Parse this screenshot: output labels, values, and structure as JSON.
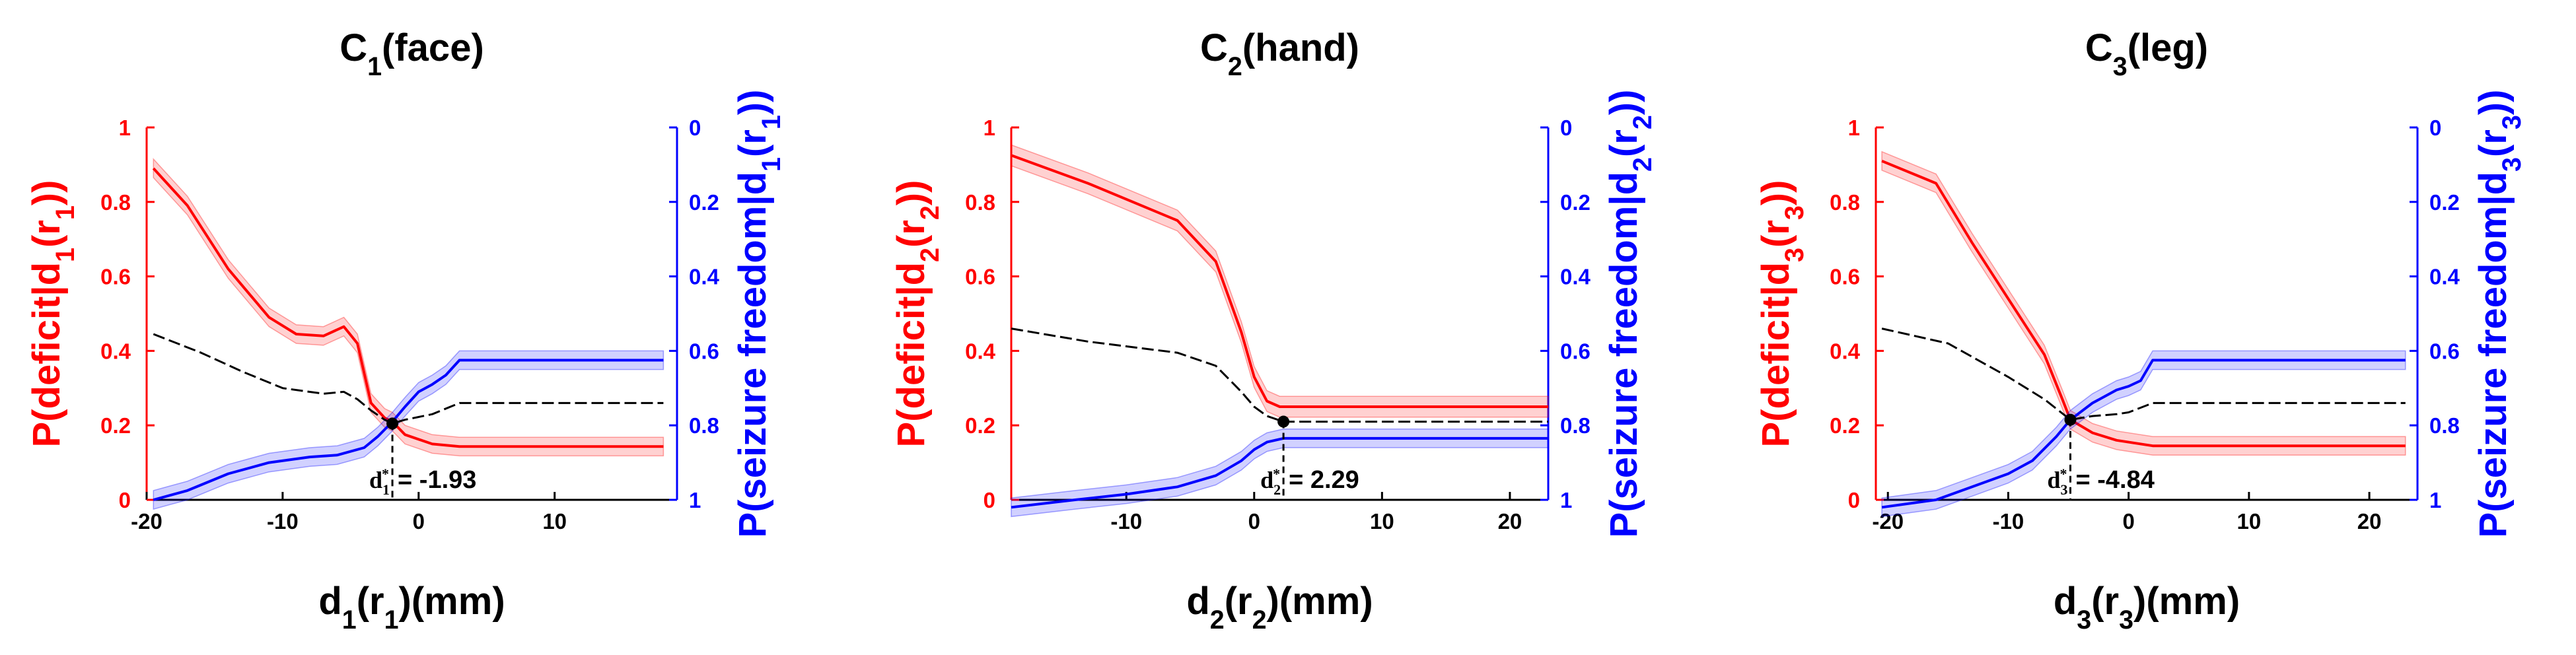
{
  "chart_data": [
    {
      "type": "line",
      "title": "C1(face)",
      "title_parts": [
        "C",
        "1",
        "(face)"
      ],
      "xlabel_parts": [
        "d",
        "1",
        "(r",
        "1",
        ")(mm)"
      ],
      "ylabel_left_parts": [
        "P(deficit|d",
        "1",
        "(r",
        "1",
        "))"
      ],
      "ylabel_right_parts": [
        "P(seizure freedom|d",
        "1",
        "(r",
        "1",
        "))"
      ],
      "xlim": [
        -20,
        19
      ],
      "xticks": [
        -20,
        -10,
        0,
        10
      ],
      "xtick_labels": [
        "-20",
        "-10",
        "0",
        "10"
      ],
      "ylim_left": [
        0,
        1
      ],
      "yticks_left": [
        0,
        0.2,
        0.4,
        0.6,
        0.8,
        1
      ],
      "ytick_labels_left": [
        "0",
        "0.2",
        "0.4",
        "0.6",
        "0.8",
        "1"
      ],
      "ylim_right": [
        1,
        0
      ],
      "yticks_right": [
        0,
        0.2,
        0.4,
        0.6,
        0.8,
        1
      ],
      "ytick_labels_right": [
        "0",
        "0.2",
        "0.4",
        "0.6",
        "0.8",
        "1"
      ],
      "series": [
        {
          "role": "deficit",
          "axis": "left",
          "color": "#ff0000",
          "x": [
            -19.5,
            -17,
            -14,
            -11,
            -9,
            -7,
            -5.5,
            -4.5,
            -3.5,
            -2.5,
            -1.93,
            -1,
            1,
            3,
            18
          ],
          "y": [
            0.89,
            0.79,
            0.62,
            0.49,
            0.445,
            0.44,
            0.465,
            0.42,
            0.26,
            0.22,
            0.21,
            0.175,
            0.15,
            0.143,
            0.143
          ],
          "band": 0.025
        },
        {
          "role": "seizure-freedom",
          "axis": "right",
          "color": "#0000ff",
          "x": [
            -19.5,
            -17,
            -14,
            -11,
            -8,
            -6,
            -4,
            -3,
            -1.93,
            -1,
            0,
            1,
            2,
            3,
            18
          ],
          "y": [
            1.0,
            0.975,
            0.93,
            0.9,
            0.885,
            0.88,
            0.86,
            0.83,
            0.79,
            0.75,
            0.71,
            0.69,
            0.665,
            0.625,
            0.625
          ],
          "band": 0.025
        },
        {
          "role": "combined",
          "axis": "left",
          "color": "#000000",
          "dashed": true,
          "x": [
            -19.5,
            -16,
            -13,
            -10,
            -7,
            -5.5,
            -4.5,
            -3.5,
            -2.5,
            -1.93,
            -1,
            1,
            3,
            18
          ],
          "y": [
            0.445,
            0.395,
            0.345,
            0.3,
            0.285,
            0.29,
            0.27,
            0.24,
            0.215,
            0.205,
            0.215,
            0.23,
            0.26,
            0.26
          ]
        }
      ],
      "optimum": {
        "x": -1.93,
        "y": 0.205,
        "label_parts": [
          "d",
          "1",
          "*"
        ],
        "value_text": "= -1.93"
      }
    },
    {
      "type": "line",
      "title": "C2(hand)",
      "title_parts": [
        "C",
        "2",
        "(hand)"
      ],
      "xlabel_parts": [
        "d",
        "2",
        "(r",
        "2",
        ")(mm)"
      ],
      "ylabel_left_parts": [
        "P(deficit|d",
        "2",
        "(r",
        "2",
        "))"
      ],
      "ylabel_right_parts": [
        "P(seizure freedom|d",
        "2",
        "(r",
        "2",
        "))"
      ],
      "xlim": [
        -19,
        23
      ],
      "xticks": [
        -10,
        0,
        10,
        20
      ],
      "xtick_labels": [
        "-10",
        "0",
        "10",
        "20"
      ],
      "ylim_left": [
        0,
        1
      ],
      "yticks_left": [
        0,
        0.2,
        0.4,
        0.6,
        0.8,
        1
      ],
      "ytick_labels_left": [
        "0",
        "0.2",
        "0.4",
        "0.6",
        "0.8",
        "1"
      ],
      "ylim_right": [
        1,
        0
      ],
      "yticks_right": [
        0,
        0.2,
        0.4,
        0.6,
        0.8,
        1
      ],
      "ytick_labels_right": [
        "0",
        "0.2",
        "0.4",
        "0.6",
        "0.8",
        "1"
      ],
      "series": [
        {
          "role": "deficit",
          "axis": "left",
          "color": "#ff0000",
          "x": [
            -19,
            -13,
            -6,
            -3,
            -1,
            0,
            1,
            2,
            3,
            23
          ],
          "y": [
            0.925,
            0.85,
            0.75,
            0.64,
            0.45,
            0.33,
            0.265,
            0.25,
            0.25,
            0.25
          ],
          "band": 0.028
        },
        {
          "role": "seizure-freedom",
          "axis": "right",
          "color": "#0000ff",
          "x": [
            -19,
            -14,
            -10,
            -6,
            -3,
            -1,
            0,
            1,
            2.29,
            3,
            23
          ],
          "y": [
            1.02,
            1.0,
            0.985,
            0.965,
            0.935,
            0.895,
            0.865,
            0.845,
            0.835,
            0.835,
            0.835
          ],
          "band": 0.025
        },
        {
          "role": "combined",
          "axis": "left",
          "color": "#000000",
          "dashed": true,
          "x": [
            -19,
            -13,
            -6,
            -3,
            -1,
            0,
            1,
            2.29,
            4,
            23
          ],
          "y": [
            0.46,
            0.425,
            0.395,
            0.36,
            0.29,
            0.25,
            0.225,
            0.21,
            0.21,
            0.21
          ]
        }
      ],
      "optimum": {
        "x": 2.29,
        "y": 0.21,
        "label_parts": [
          "d",
          "2",
          "*"
        ],
        "value_text": "= 2.29"
      }
    },
    {
      "type": "line",
      "title": "C3(leg)",
      "title_parts": [
        "C",
        "3",
        "(leg)"
      ],
      "xlabel_parts": [
        "d",
        "3",
        "(r",
        "3",
        ")(mm)"
      ],
      "ylabel_left_parts": [
        "P(deficit|d",
        "3",
        "(r",
        "3",
        "))"
      ],
      "ylabel_right_parts": [
        "P(seizure freedom|d",
        "3",
        "(r",
        "3",
        "))"
      ],
      "xlim": [
        -21,
        24
      ],
      "xticks": [
        -20,
        -10,
        0,
        10,
        20
      ],
      "xtick_labels": [
        "-20",
        "-10",
        "0",
        "10",
        "20"
      ],
      "ylim_left": [
        0,
        1
      ],
      "yticks_left": [
        0,
        0.2,
        0.4,
        0.6,
        0.8,
        1
      ],
      "ytick_labels_left": [
        "0",
        "0.2",
        "0.4",
        "0.6",
        "0.8",
        "1"
      ],
      "ylim_right": [
        1,
        0
      ],
      "yticks_right": [
        0,
        0.2,
        0.4,
        0.6,
        0.8,
        1
      ],
      "ytick_labels_right": [
        "0",
        "0.2",
        "0.4",
        "0.6",
        "0.8",
        "1"
      ],
      "series": [
        {
          "role": "deficit",
          "axis": "left",
          "color": "#ff0000",
          "x": [
            -20.5,
            -16,
            -13,
            -10,
            -7,
            -5.5,
            -4.84,
            -3,
            -1,
            2,
            23
          ],
          "y": [
            0.91,
            0.85,
            0.69,
            0.54,
            0.39,
            0.27,
            0.215,
            0.18,
            0.16,
            0.145,
            0.145
          ],
          "band": 0.025
        },
        {
          "role": "seizure-freedom",
          "axis": "right",
          "color": "#0000ff",
          "x": [
            -20.5,
            -16,
            -13,
            -10,
            -8,
            -6,
            -4.84,
            -3,
            -1,
            0,
            1,
            2,
            23
          ],
          "y": [
            1.02,
            1.0,
            0.965,
            0.93,
            0.895,
            0.83,
            0.785,
            0.74,
            0.705,
            0.695,
            0.68,
            0.625,
            0.625
          ],
          "band": 0.025
        },
        {
          "role": "combined",
          "axis": "left",
          "color": "#000000",
          "dashed": true,
          "x": [
            -20.5,
            -15,
            -10,
            -7,
            -4.84,
            -3,
            -1,
            0,
            2,
            23
          ],
          "y": [
            0.46,
            0.42,
            0.33,
            0.27,
            0.215,
            0.225,
            0.23,
            0.235,
            0.26,
            0.26
          ]
        }
      ],
      "optimum": {
        "x": -4.84,
        "y": 0.215,
        "label_parts": [
          "d",
          "3",
          "*"
        ],
        "value_text": "= -4.84"
      }
    }
  ]
}
